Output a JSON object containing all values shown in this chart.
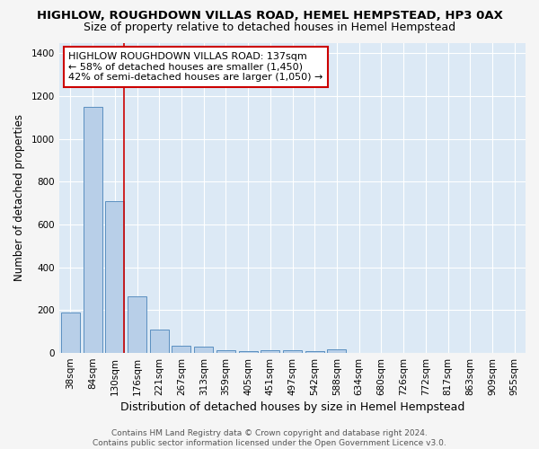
{
  "title": "HIGHLOW, ROUGHDOWN VILLAS ROAD, HEMEL HEMPSTEAD, HP3 0AX",
  "subtitle": "Size of property relative to detached houses in Hemel Hempstead",
  "xlabel": "Distribution of detached houses by size in Hemel Hempstead",
  "ylabel": "Number of detached properties",
  "categories": [
    "38sqm",
    "84sqm",
    "130sqm",
    "176sqm",
    "221sqm",
    "267sqm",
    "313sqm",
    "359sqm",
    "405sqm",
    "451sqm",
    "497sqm",
    "542sqm",
    "588sqm",
    "634sqm",
    "680sqm",
    "726sqm",
    "772sqm",
    "817sqm",
    "863sqm",
    "909sqm",
    "955sqm"
  ],
  "values": [
    190,
    1150,
    710,
    265,
    110,
    35,
    30,
    12,
    10,
    13,
    12,
    10,
    18,
    0,
    0,
    0,
    0,
    0,
    0,
    0,
    0
  ],
  "bar_color": "#b8cfe8",
  "bar_edge_color": "#5a8fc0",
  "redline_x": 2,
  "annotation_text": "HIGHLOW ROUGHDOWN VILLAS ROAD: 137sqm\n← 58% of detached houses are smaller (1,450)\n42% of semi-detached houses are larger (1,050) →",
  "annotation_box_color": "#ffffff",
  "annotation_box_edge_color": "#cc0000",
  "ylim": [
    0,
    1450
  ],
  "yticks": [
    0,
    200,
    400,
    600,
    800,
    1000,
    1200,
    1400
  ],
  "background_color": "#dce9f5",
  "grid_color": "#ffffff",
  "footer": "Contains HM Land Registry data © Crown copyright and database right 2024.\nContains public sector information licensed under the Open Government Licence v3.0.",
  "title_fontsize": 9.5,
  "subtitle_fontsize": 9,
  "xlabel_fontsize": 9,
  "ylabel_fontsize": 8.5,
  "tick_fontsize": 7.5,
  "annotation_fontsize": 8,
  "footer_fontsize": 6.5
}
